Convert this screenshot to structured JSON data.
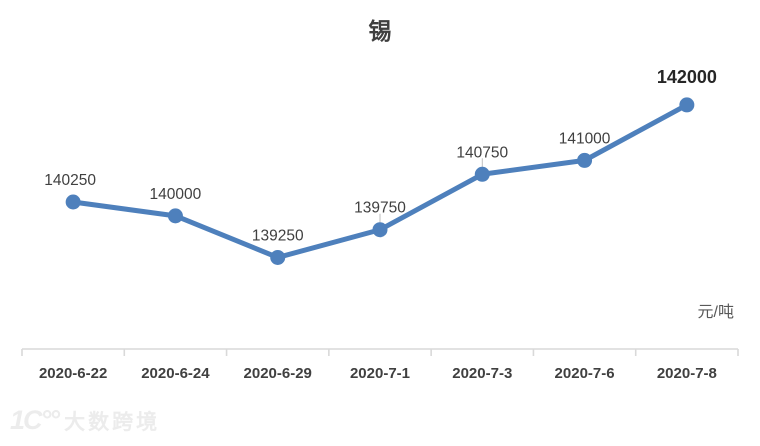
{
  "chart_data": {
    "type": "line",
    "title": "锡",
    "categories": [
      "2020-6-22",
      "2020-6-24",
      "2020-6-29",
      "2020-7-1",
      "2020-7-3",
      "2020-7-6",
      "2020-7-8"
    ],
    "series": [
      {
        "name": "锡",
        "values": [
          140250,
          140000,
          139250,
          139750,
          140750,
          141000,
          142000
        ]
      }
    ],
    "data_labels": [
      "140250",
      "140000",
      "139250",
      "139750",
      "140750",
      "141000",
      "142000"
    ],
    "unit_label": "元/吨",
    "xlabel": "",
    "ylabel": "元/吨",
    "ylim": [
      137600,
      142900
    ],
    "grid": false,
    "legend": "none",
    "emphasized_point_index": 6,
    "leader_line_indices": [
      3,
      4
    ],
    "colors": {
      "line": "#4e80bc",
      "marker": "#4e80bc",
      "axis": "#d9d9d9",
      "leader": "#bfbfbf",
      "title": "#3f3f3f",
      "data_label": "#404040",
      "emphasized_label": "#262626",
      "axis_label": "#404040",
      "unit_label": "#595959"
    }
  },
  "watermark": {
    "logo": "1C°°",
    "text": "大数跨境"
  }
}
